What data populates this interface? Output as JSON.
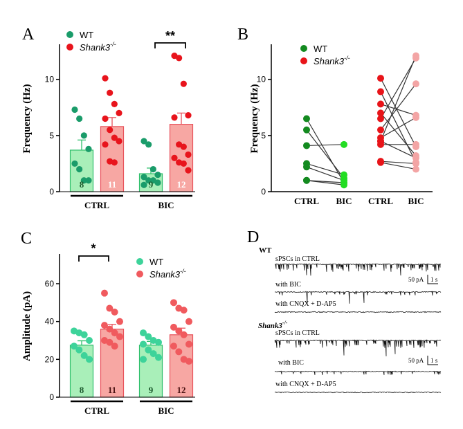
{
  "colors": {
    "wt_point": "#1a9c6a",
    "wt_bar": "#a9efb9",
    "wt_bar_edge": "#2fbf6b",
    "ko_point": "#e8141c",
    "ko_bar": "#f7a7a3",
    "ko_bar_edge": "#e8515a",
    "b_wt": "#138a1f",
    "b_ko_ctrl": "#e81419",
    "b_ko_bic": "#f3a5a5",
    "c_wt": "#3dd39a",
    "c_ko": "#f05a5e"
  },
  "legend": {
    "wt": "WT",
    "ko_name": "Shank3",
    "ko_sup": "-/-"
  },
  "panels": {
    "A": {
      "letter": "A"
    },
    "B": {
      "letter": "B"
    },
    "C": {
      "letter": "C"
    },
    "D": {
      "letter": "D"
    }
  },
  "chart_data": [
    {
      "id": "A",
      "type": "bar",
      "ylabel": "Frequency (Hz)",
      "ylim": [
        0,
        13
      ],
      "yticks": [
        "0",
        "5",
        "10"
      ],
      "yticks_values": [
        0,
        5,
        10
      ],
      "categories": [
        "CTRL",
        "BIC"
      ],
      "series": [
        {
          "name": "WT",
          "values": [
            3.7,
            1.6
          ],
          "sem": [
            0.9,
            0.5
          ],
          "n": [
            "8",
            "9"
          ],
          "points": [
            [
              7.3,
              6.5,
              5.0,
              3.8,
              2.5,
              2.0,
              1.0,
              1.0
            ],
            [
              4.5,
              4.2,
              2.0,
              1.5,
              1.3,
              1.0,
              1.0,
              0.8,
              0.6
            ]
          ]
        },
        {
          "name": "Shank3-/-",
          "values": [
            5.8,
            6.0
          ],
          "sem": [
            0.8,
            1.0
          ],
          "n": [
            "11",
            "12"
          ],
          "points": [
            [
              10.1,
              8.8,
              7.8,
              7.0,
              6.5,
              5.5,
              4.8,
              4.5,
              4.2,
              2.7,
              2.6
            ],
            [
              12.1,
              11.9,
              9.6,
              6.8,
              6.6,
              4.2,
              4.0,
              3.3,
              3.0,
              2.6,
              2.5,
              1.9
            ]
          ]
        }
      ],
      "significance": [
        "**"
      ]
    },
    {
      "id": "B",
      "type": "line",
      "ylabel": "Frequency (Hz)",
      "ylim": [
        0,
        13
      ],
      "yticks": [
        "0",
        "5",
        "10"
      ],
      "yticks_values": [
        0,
        5,
        10
      ],
      "x_labels": [
        "CTRL",
        "BIC",
        "CTRL",
        "BIC"
      ],
      "series": [
        {
          "name": "WT",
          "pairs": [
            [
              6.5,
              0.8
            ],
            [
              5.5,
              1.2
            ],
            [
              4.1,
              4.2
            ],
            [
              2.5,
              1.5
            ],
            [
              2.2,
              1.0
            ],
            [
              1.0,
              0.8
            ],
            [
              1.0,
              0.6
            ]
          ]
        },
        {
          "name": "Shank3-/-",
          "pairs": [
            [
              10.1,
              4.0
            ],
            [
              8.9,
              2.6
            ],
            [
              7.8,
              6.8
            ],
            [
              7.0,
              3.2
            ],
            [
              6.5,
              11.9
            ],
            [
              5.5,
              9.6
            ],
            [
              4.8,
              6.6
            ],
            [
              4.5,
              12.1
            ],
            [
              4.5,
              3.0
            ],
            [
              4.2,
              4.2
            ],
            [
              2.7,
              2.5
            ],
            [
              2.6,
              2.0
            ]
          ]
        }
      ]
    },
    {
      "id": "C",
      "type": "bar",
      "ylabel": "Amplitude (pA)",
      "ylim": [
        0,
        75
      ],
      "yticks": [
        "0",
        "20",
        "40",
        "60"
      ],
      "yticks_values": [
        0,
        20,
        40,
        60
      ],
      "categories": [
        "CTRL",
        "BIC"
      ],
      "series": [
        {
          "name": "WT",
          "values": [
            27.5,
            27.5
          ],
          "sem": [
            2.3,
            2.0
          ],
          "n": [
            "8",
            "9"
          ],
          "points": [
            [
              35.0,
              34.0,
              33.0,
              30.0,
              27.0,
              25.0,
              22.0,
              20.0
            ],
            [
              34.0,
              32.0,
              30.0,
              29.0,
              28.0,
              25.0,
              23.0,
              21.0,
              20.0
            ]
          ]
        },
        {
          "name": "Shank3-/-",
          "values": [
            36.0,
            33.0
          ],
          "sem": [
            2.5,
            3.5
          ],
          "n": [
            "11",
            "12"
          ],
          "points": [
            [
              55.0,
              47.0,
              45.0,
              40.0,
              38.0,
              36.0,
              34.0,
              32.0,
              30.0,
              29.0,
              27.0
            ],
            [
              50.0,
              47.0,
              46.0,
              40.0,
              37.0,
              35.0,
              33.0,
              28.0,
              27.0,
              24.0,
              20.0,
              19.0
            ]
          ]
        }
      ],
      "significance": [
        "*"
      ]
    }
  ],
  "traces": {
    "wt_title": "WT",
    "ko_title_name": "Shank3",
    "ko_title_sup": "-/-",
    "rows": [
      {
        "label": "sPSCs in CTRL",
        "activity": "high"
      },
      {
        "label": "with BIC",
        "activity": "low"
      },
      {
        "label": "with CNQX + D-AP5",
        "activity": "flat"
      },
      {
        "label": "sPSCs in CTRL",
        "activity": "high"
      },
      {
        "label": "with BIC",
        "activity": "low"
      },
      {
        "label": "with CNQX + D-AP5",
        "activity": "flat"
      }
    ],
    "scale_current": "50 pA",
    "scale_time": "1 s"
  }
}
